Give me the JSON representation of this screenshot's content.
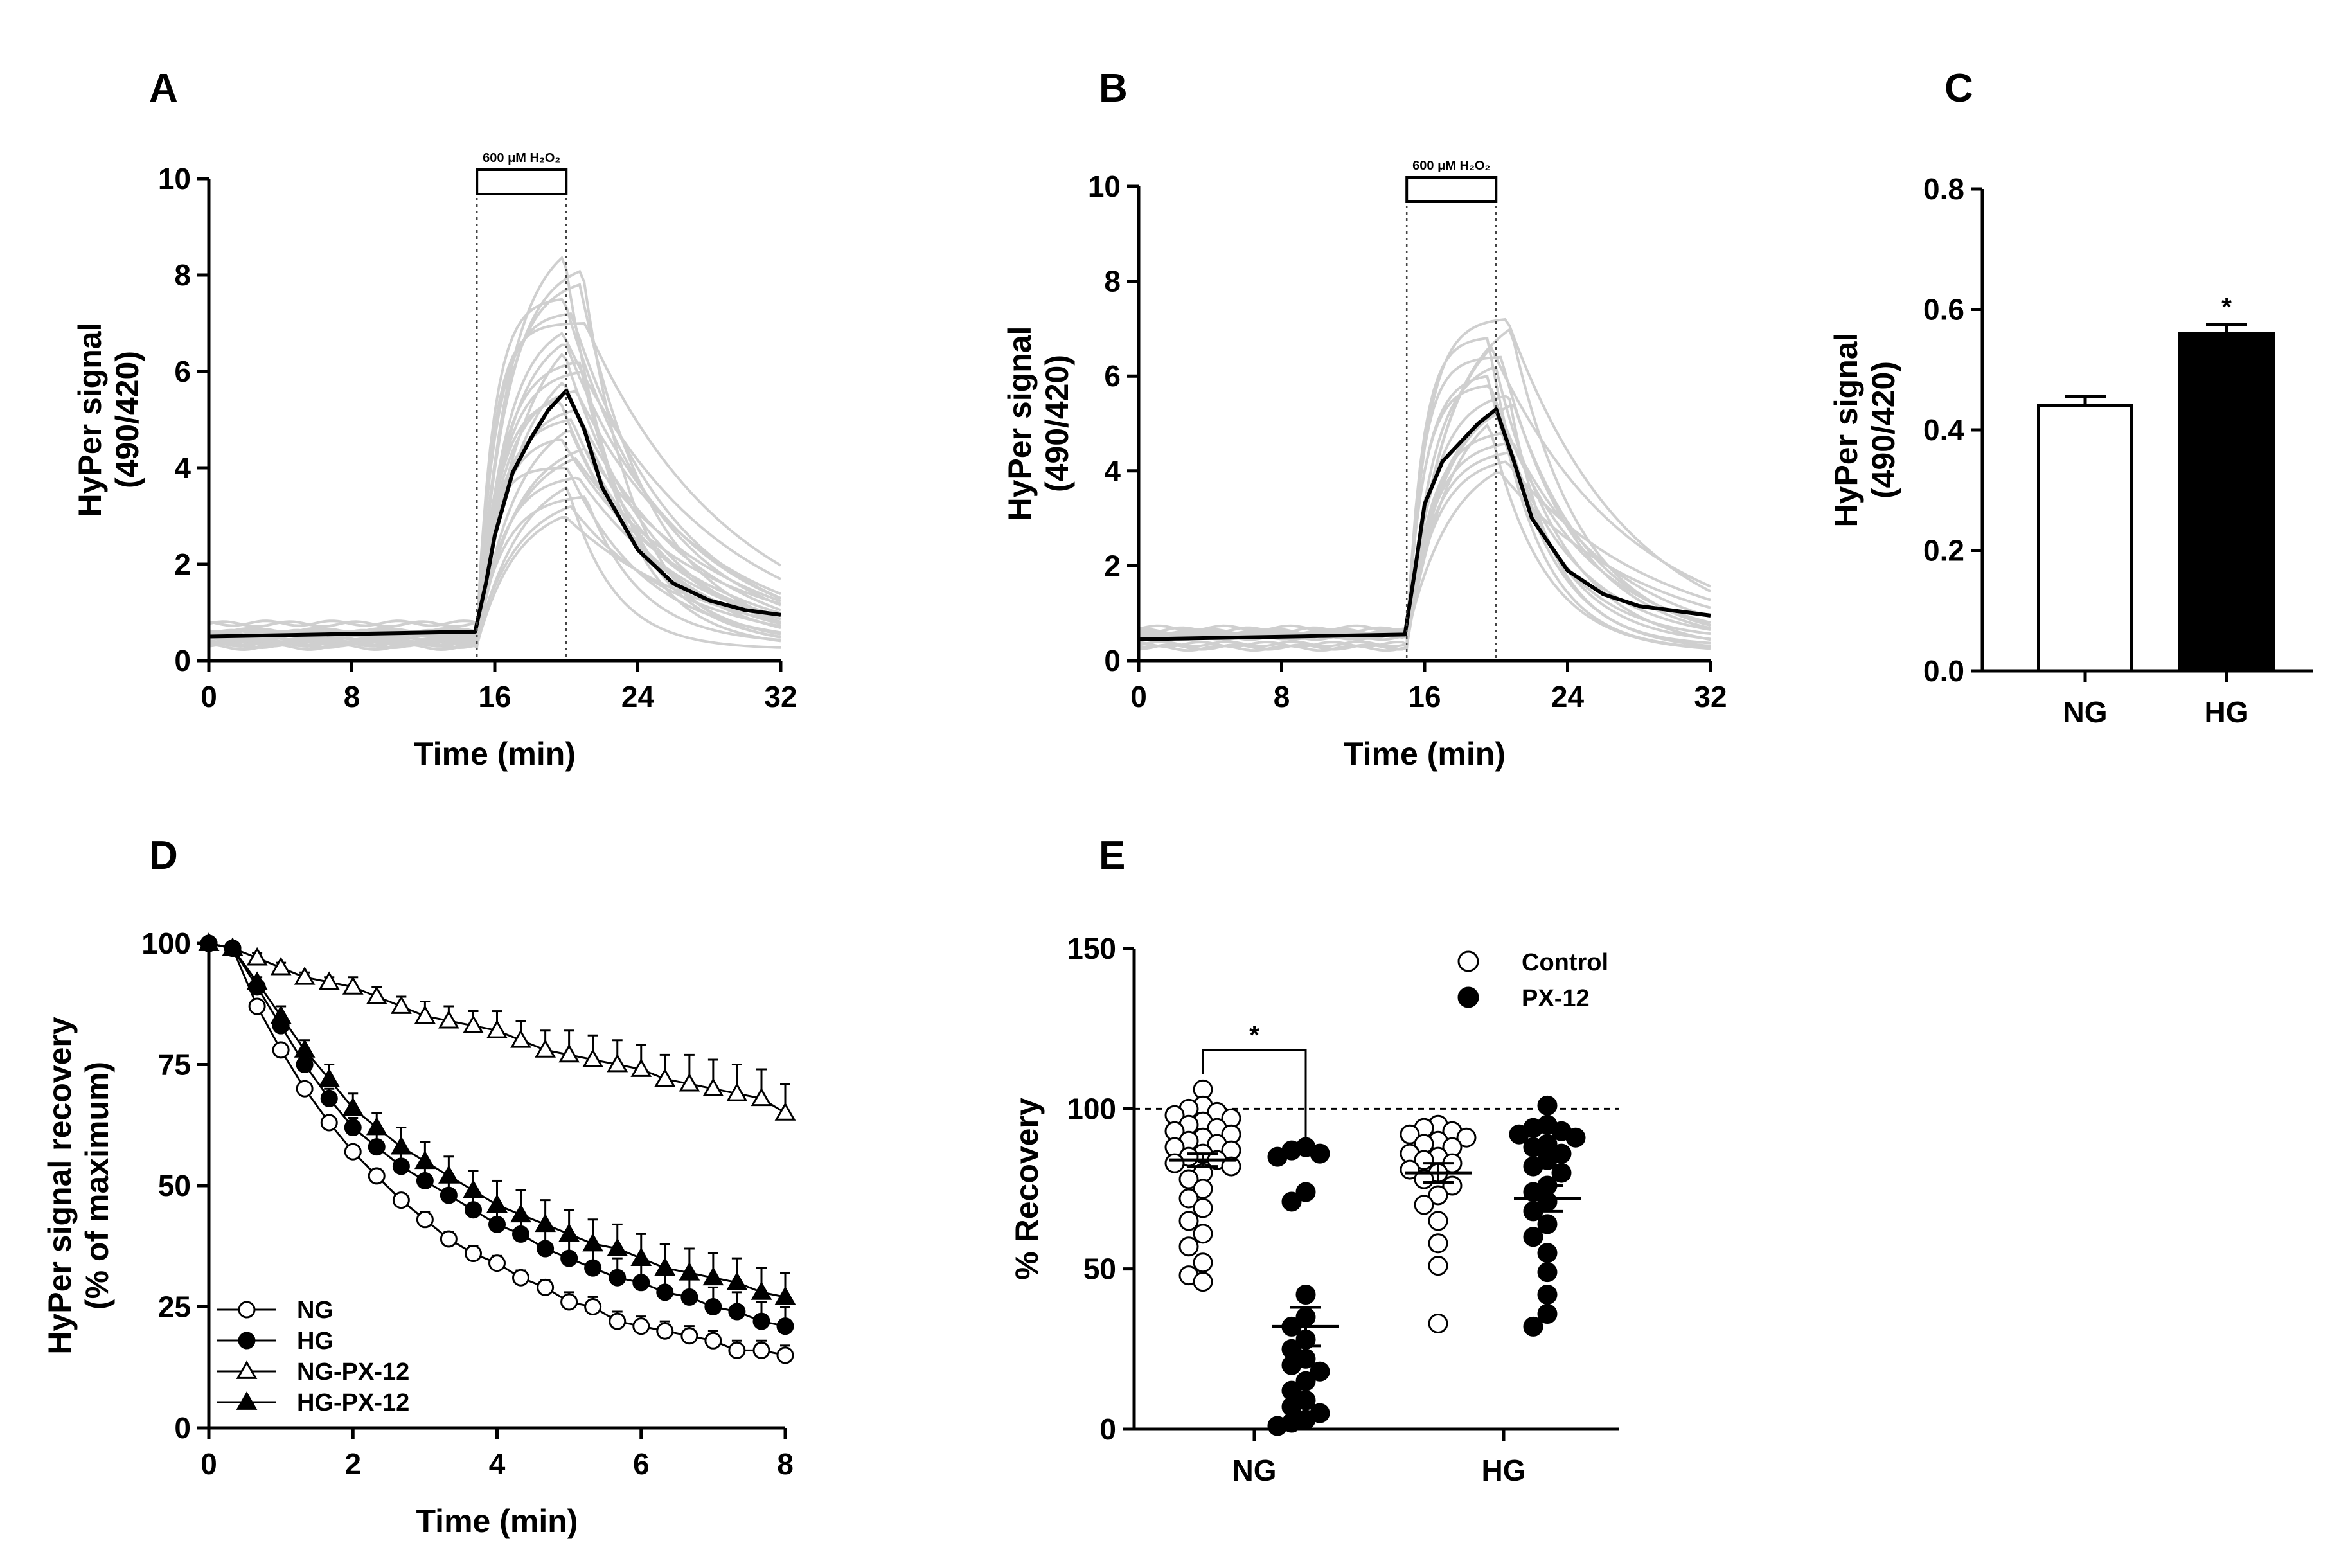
{
  "chart_data": [
    {
      "panel": "A",
      "type": "line",
      "xlabel": "Time (min)",
      "ylabel": [
        "HyPer signal",
        "(490/420)"
      ],
      "xlim": [
        0,
        32
      ],
      "ylim": [
        0,
        10
      ],
      "xticks": [
        0,
        8,
        16,
        24,
        32
      ],
      "yticks": [
        0,
        2,
        4,
        6,
        8,
        10
      ],
      "stimulus": {
        "label": "600 μM H₂O₂",
        "x_start": 15,
        "x_end": 20
      },
      "individual_peaks": [
        8.4,
        8.1,
        7.8,
        7.5,
        7.2,
        7.0,
        6.8,
        6.6,
        6.4,
        6.2,
        6.0,
        5.8,
        5.6,
        5.4,
        5.2,
        5.0,
        4.8,
        4.6,
        4.4,
        4.2,
        4.0,
        3.8,
        3.6,
        3.4,
        3.2,
        3.0
      ],
      "mean_trace": {
        "x": [
          0,
          14.9,
          15.5,
          16,
          17,
          18,
          19,
          20,
          21,
          22,
          24,
          26,
          28,
          30,
          32
        ],
        "y": [
          0.5,
          0.6,
          1.6,
          2.6,
          3.9,
          4.6,
          5.2,
          5.6,
          4.8,
          3.6,
          2.3,
          1.6,
          1.25,
          1.05,
          0.95
        ]
      }
    },
    {
      "panel": "B",
      "type": "line",
      "xlabel": "Time (min)",
      "ylabel": [
        "HyPer signal",
        "(490/420)"
      ],
      "xlim": [
        0,
        32
      ],
      "ylim": [
        0,
        10
      ],
      "xticks": [
        0,
        8,
        16,
        24,
        32
      ],
      "yticks": [
        0,
        2,
        4,
        6,
        8,
        10
      ],
      "stimulus": {
        "label": "600 μM H₂O₂",
        "x_start": 15,
        "x_end": 20
      },
      "individual_peaks": [
        7.2,
        7.0,
        6.8,
        6.6,
        6.4,
        6.2,
        6.0,
        5.8,
        5.6,
        5.4,
        5.2,
        5.0,
        4.8,
        4.6,
        4.4,
        4.2,
        4.0
      ],
      "mean_trace": {
        "x": [
          0,
          14.9,
          15.5,
          16,
          17,
          18,
          19,
          20,
          21,
          22,
          24,
          26,
          28,
          30,
          32
        ],
        "y": [
          0.45,
          0.55,
          2.0,
          3.3,
          4.2,
          4.6,
          5.0,
          5.3,
          4.2,
          3.0,
          1.9,
          1.4,
          1.15,
          1.05,
          0.95
        ]
      }
    },
    {
      "panel": "C",
      "type": "bar",
      "categories": [
        "NG",
        "HG"
      ],
      "values": [
        0.44,
        0.56
      ],
      "errors": [
        0.015,
        0.015
      ],
      "fill": [
        "#ffffff",
        "#000000"
      ],
      "significance": [
        "",
        "*"
      ],
      "ylabel": [
        "HyPer signal",
        "(490/420)"
      ],
      "ylim": [
        0,
        0.8
      ],
      "yticks": [
        "0.0",
        "0.2",
        "0.4",
        "0.6",
        "0.8"
      ]
    },
    {
      "panel": "D",
      "type": "line",
      "xlabel": "Time (min)",
      "ylabel": [
        "HyPer signal recovery",
        "(% of maximum)"
      ],
      "xlim": [
        0,
        8
      ],
      "ylim": [
        0,
        100
      ],
      "xticks": [
        0,
        2,
        4,
        6,
        8
      ],
      "yticks": [
        0,
        25,
        50,
        75,
        100
      ],
      "x": [
        0,
        0.33,
        0.67,
        1.0,
        1.33,
        1.67,
        2.0,
        2.33,
        2.67,
        3.0,
        3.33,
        3.67,
        4.0,
        4.33,
        4.67,
        5.0,
        5.33,
        5.67,
        6.0,
        6.33,
        6.67,
        7.0,
        7.33,
        7.67,
        8.0
      ],
      "series": [
        {
          "name": "NG",
          "marker": "circle-open",
          "values": [
            100,
            99,
            87,
            78,
            70,
            63,
            57,
            52,
            47,
            43,
            39,
            36,
            34,
            31,
            29,
            26,
            25,
            22,
            21,
            20,
            19,
            18,
            16,
            16,
            15
          ],
          "err": [
            0,
            0,
            1,
            1,
            1,
            1,
            1,
            1,
            1,
            1.5,
            1.5,
            1.5,
            1.5,
            1.5,
            1.5,
            2,
            2,
            2,
            2,
            2,
            2,
            2,
            2,
            2,
            2
          ]
        },
        {
          "name": "HG",
          "marker": "circle-filled",
          "values": [
            100,
            99,
            91,
            83,
            75,
            68,
            62,
            58,
            54,
            51,
            48,
            45,
            42,
            40,
            37,
            35,
            33,
            31,
            30,
            28,
            27,
            25,
            24,
            22,
            21
          ],
          "err": [
            0,
            0,
            1,
            1,
            2,
            2,
            2,
            3,
            3,
            3,
            3,
            4,
            4,
            4,
            4,
            4,
            4,
            4,
            4,
            4,
            4,
            4,
            4,
            4,
            4
          ]
        },
        {
          "name": "NG-PX-12",
          "marker": "triangle-open",
          "values": [
            100,
            99,
            97,
            95,
            93,
            92,
            91,
            89,
            87,
            85,
            84,
            83,
            82,
            80,
            78,
            77,
            76,
            75,
            74,
            72,
            71,
            70,
            69,
            68,
            65
          ],
          "err": [
            0,
            0,
            1,
            1,
            1,
            1,
            2,
            2,
            2,
            3,
            3,
            3,
            4,
            4,
            4,
            5,
            5,
            5,
            5,
            5,
            6,
            6,
            6,
            6,
            6
          ]
        },
        {
          "name": "HG-PX-12",
          "marker": "triangle-filled",
          "values": [
            100,
            99,
            92,
            85,
            78,
            72,
            66,
            62,
            58,
            55,
            52,
            49,
            46,
            44,
            42,
            40,
            38,
            37,
            35,
            33,
            32,
            31,
            30,
            28,
            27
          ],
          "err": [
            0,
            0,
            1,
            2,
            2,
            3,
            3,
            3,
            4,
            4,
            4,
            4,
            5,
            5,
            5,
            5,
            5,
            5,
            5,
            5,
            5,
            5,
            5,
            5,
            5
          ]
        }
      ]
    },
    {
      "panel": "E",
      "type": "scatter",
      "ylabel": "% Recovery",
      "categories": [
        "NG",
        "HG"
      ],
      "ylim": [
        0,
        150
      ],
      "yticks": [
        0,
        50,
        100,
        150
      ],
      "reference_line": 100,
      "significance": "*",
      "legend": [
        {
          "label": "Control",
          "marker": "circle-open"
        },
        {
          "label": "PX-12",
          "marker": "circle-filled"
        }
      ],
      "groups": [
        {
          "category": "NG",
          "series": "Control",
          "mean": 84,
          "sem": 2,
          "values": [
            106,
            101,
            100,
            99,
            98,
            97,
            96,
            95,
            94,
            93,
            92,
            91,
            90,
            89,
            88,
            87,
            86,
            85,
            84,
            83,
            82,
            80,
            78,
            75,
            72,
            69,
            65,
            61,
            57,
            52,
            48,
            46
          ]
        },
        {
          "category": "NG",
          "series": "PX-12",
          "mean": 32,
          "sem": 6,
          "values": [
            88,
            87,
            86,
            85,
            74,
            71,
            42,
            35,
            32,
            28,
            25,
            22,
            20,
            18,
            15,
            12,
            9,
            7,
            5,
            3,
            2,
            1
          ]
        },
        {
          "category": "HG",
          "series": "Control",
          "mean": 80,
          "sem": 3,
          "values": [
            95,
            94,
            93,
            92,
            91,
            90,
            89,
            88,
            86,
            85,
            84,
            83,
            81,
            80,
            78,
            76,
            73,
            70,
            65,
            58,
            51,
            33
          ]
        },
        {
          "category": "HG",
          "series": "PX-12",
          "mean": 72,
          "sem": 4,
          "values": [
            101,
            95,
            94,
            93,
            92,
            91,
            89,
            88,
            86,
            84,
            82,
            80,
            76,
            74,
            71,
            68,
            64,
            60,
            55,
            49,
            42,
            36,
            32
          ]
        }
      ]
    }
  ]
}
